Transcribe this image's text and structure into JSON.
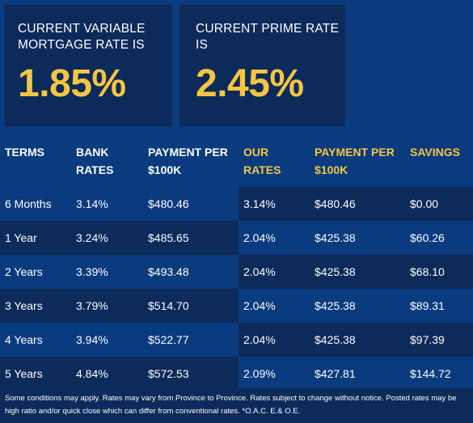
{
  "cards": {
    "variable": {
      "label": "CURRENT VARIABLE MORTGAGE RATE IS",
      "value": "1.85%"
    },
    "prime": {
      "label": "CURRENT PRIME RATE IS",
      "value": "2.45%"
    }
  },
  "table": {
    "headers": {
      "terms": "TERMS",
      "bank_rates": "BANK RATES",
      "bank_payment": "PAYMENT PER $100K",
      "our_rates": "OUR RATES",
      "our_payment": "PAYMENT PER $100K",
      "savings": "SAVINGS"
    },
    "rows": [
      {
        "term": "6 Months",
        "bank_rate": "3.14%",
        "bank_payment": "$480.46",
        "our_rate": "3.14%",
        "our_payment": "$480.46",
        "savings": "$0.00"
      },
      {
        "term": "1 Year",
        "bank_rate": "3.24%",
        "bank_payment": "$485.65",
        "our_rate": "2.04%",
        "our_payment": "$425.38",
        "savings": "$60.26"
      },
      {
        "term": "2 Years",
        "bank_rate": "3.39%",
        "bank_payment": "$493.48",
        "our_rate": "2.04%",
        "our_payment": "$425.38",
        "savings": "$68.10"
      },
      {
        "term": "3 Years",
        "bank_rate": "3.79%",
        "bank_payment": "$514.70",
        "our_rate": "2.04%",
        "our_payment": "$425.38",
        "savings": "$89.31"
      },
      {
        "term": "4 Years",
        "bank_rate": "3.94%",
        "bank_payment": "$522.77",
        "our_rate": "2.04%",
        "our_payment": "$425.38",
        "savings": "$97.39"
      },
      {
        "term": "5 Years",
        "bank_rate": "4.84%",
        "bank_payment": "$572.53",
        "our_rate": "2.09%",
        "our_payment": "$427.81",
        "savings": "$144.72"
      }
    ]
  },
  "footer": {
    "note": "Some conditions may apply. Rates may vary from Province to Province. Rates subject to change without notice. Posted rates may be high ratio and/or quick close which can differ from conventional rates. *O.A.C. E.& O.E."
  },
  "colors": {
    "background": "#0a3b7e",
    "dark_panel": "#0c2a5a",
    "accent": "#f5c542",
    "text": "#ffffff"
  }
}
